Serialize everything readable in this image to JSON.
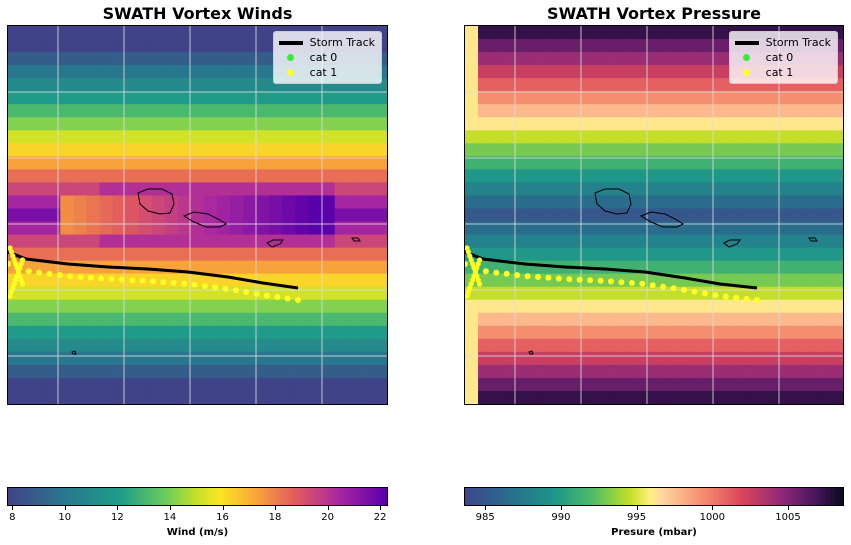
{
  "chart_data": [
    {
      "type": "heatmap",
      "title": "SWATH Vortex Winds",
      "colorbar": {
        "label": "Wind (m/s)",
        "range": [
          7.8,
          22.3
        ],
        "ticks": [
          8,
          10,
          12,
          14,
          16,
          18,
          20,
          22
        ],
        "colormap": "plasma_r-like"
      },
      "field": {
        "model": "vortex",
        "center_column": 14,
        "center_row": 14,
        "min_value": 7.8,
        "max_value": 22.3
      },
      "legend": {
        "placement": "top-right",
        "entries": [
          {
            "label": "Storm Track",
            "color": "#000000",
            "marker": "line"
          },
          {
            "label": "cat 0",
            "color": "#33ee33",
            "marker": "dot"
          },
          {
            "label": "cat 1",
            "color": "#ffff22",
            "marker": "dot"
          }
        ]
      },
      "grid": true
    },
    {
      "type": "heatmap",
      "title": "SWATH Vortex Pressure",
      "colorbar": {
        "label": "Presure (mbar)",
        "range": [
          983.6,
          1008.7
        ],
        "ticks": [
          985,
          990,
          995,
          1000,
          1005
        ],
        "colormap": "thermal-like"
      },
      "field": {
        "model": "vortex",
        "center_column": 14,
        "center_row": 14,
        "min_value": 983.6,
        "max_value": 1008.7
      },
      "legend": {
        "placement": "top-right",
        "entries": [
          {
            "label": "Storm Track",
            "color": "#000000",
            "marker": "line"
          },
          {
            "label": "cat 0",
            "color": "#33ee33",
            "marker": "dot"
          },
          {
            "label": "cat 1",
            "color": "#ffff22",
            "marker": "dot"
          }
        ]
      },
      "grid": true
    }
  ]
}
